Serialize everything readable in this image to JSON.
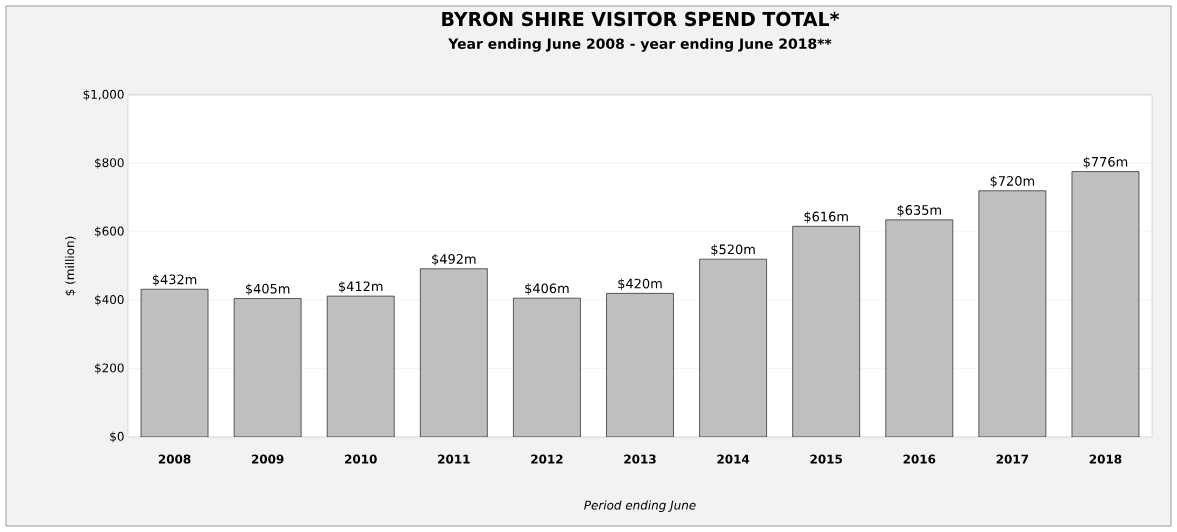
{
  "chart_data": {
    "type": "bar",
    "title": "BYRON SHIRE VISITOR SPEND TOTAL*",
    "subtitle": "Year ending June 2008 - year ending June 2018**",
    "xlabel": "Period ending June",
    "ylabel": "$ (million)",
    "categories": [
      "2008",
      "2009",
      "2010",
      "2011",
      "2012",
      "2013",
      "2014",
      "2015",
      "2016",
      "2017",
      "2018"
    ],
    "values": [
      432,
      405,
      412,
      492,
      406,
      420,
      520,
      616,
      635,
      720,
      776
    ],
    "value_labels": [
      "$432m",
      "$405m",
      "$412m",
      "$492m",
      "$406m",
      "$420m",
      "$520m",
      "$616m",
      "$635m",
      "$720m",
      "$776m"
    ],
    "color": "#bfbfbf",
    "ylim": [
      0,
      1000
    ],
    "yticks": [
      {
        "value": 0,
        "label": "$0"
      },
      {
        "value": 200,
        "label": "$200"
      },
      {
        "value": 400,
        "label": "$400"
      },
      {
        "value": 600,
        "label": "$600"
      },
      {
        "value": 800,
        "label": "$800"
      },
      {
        "value": 1000,
        "label": "$1,000"
      }
    ],
    "grid": "y"
  }
}
